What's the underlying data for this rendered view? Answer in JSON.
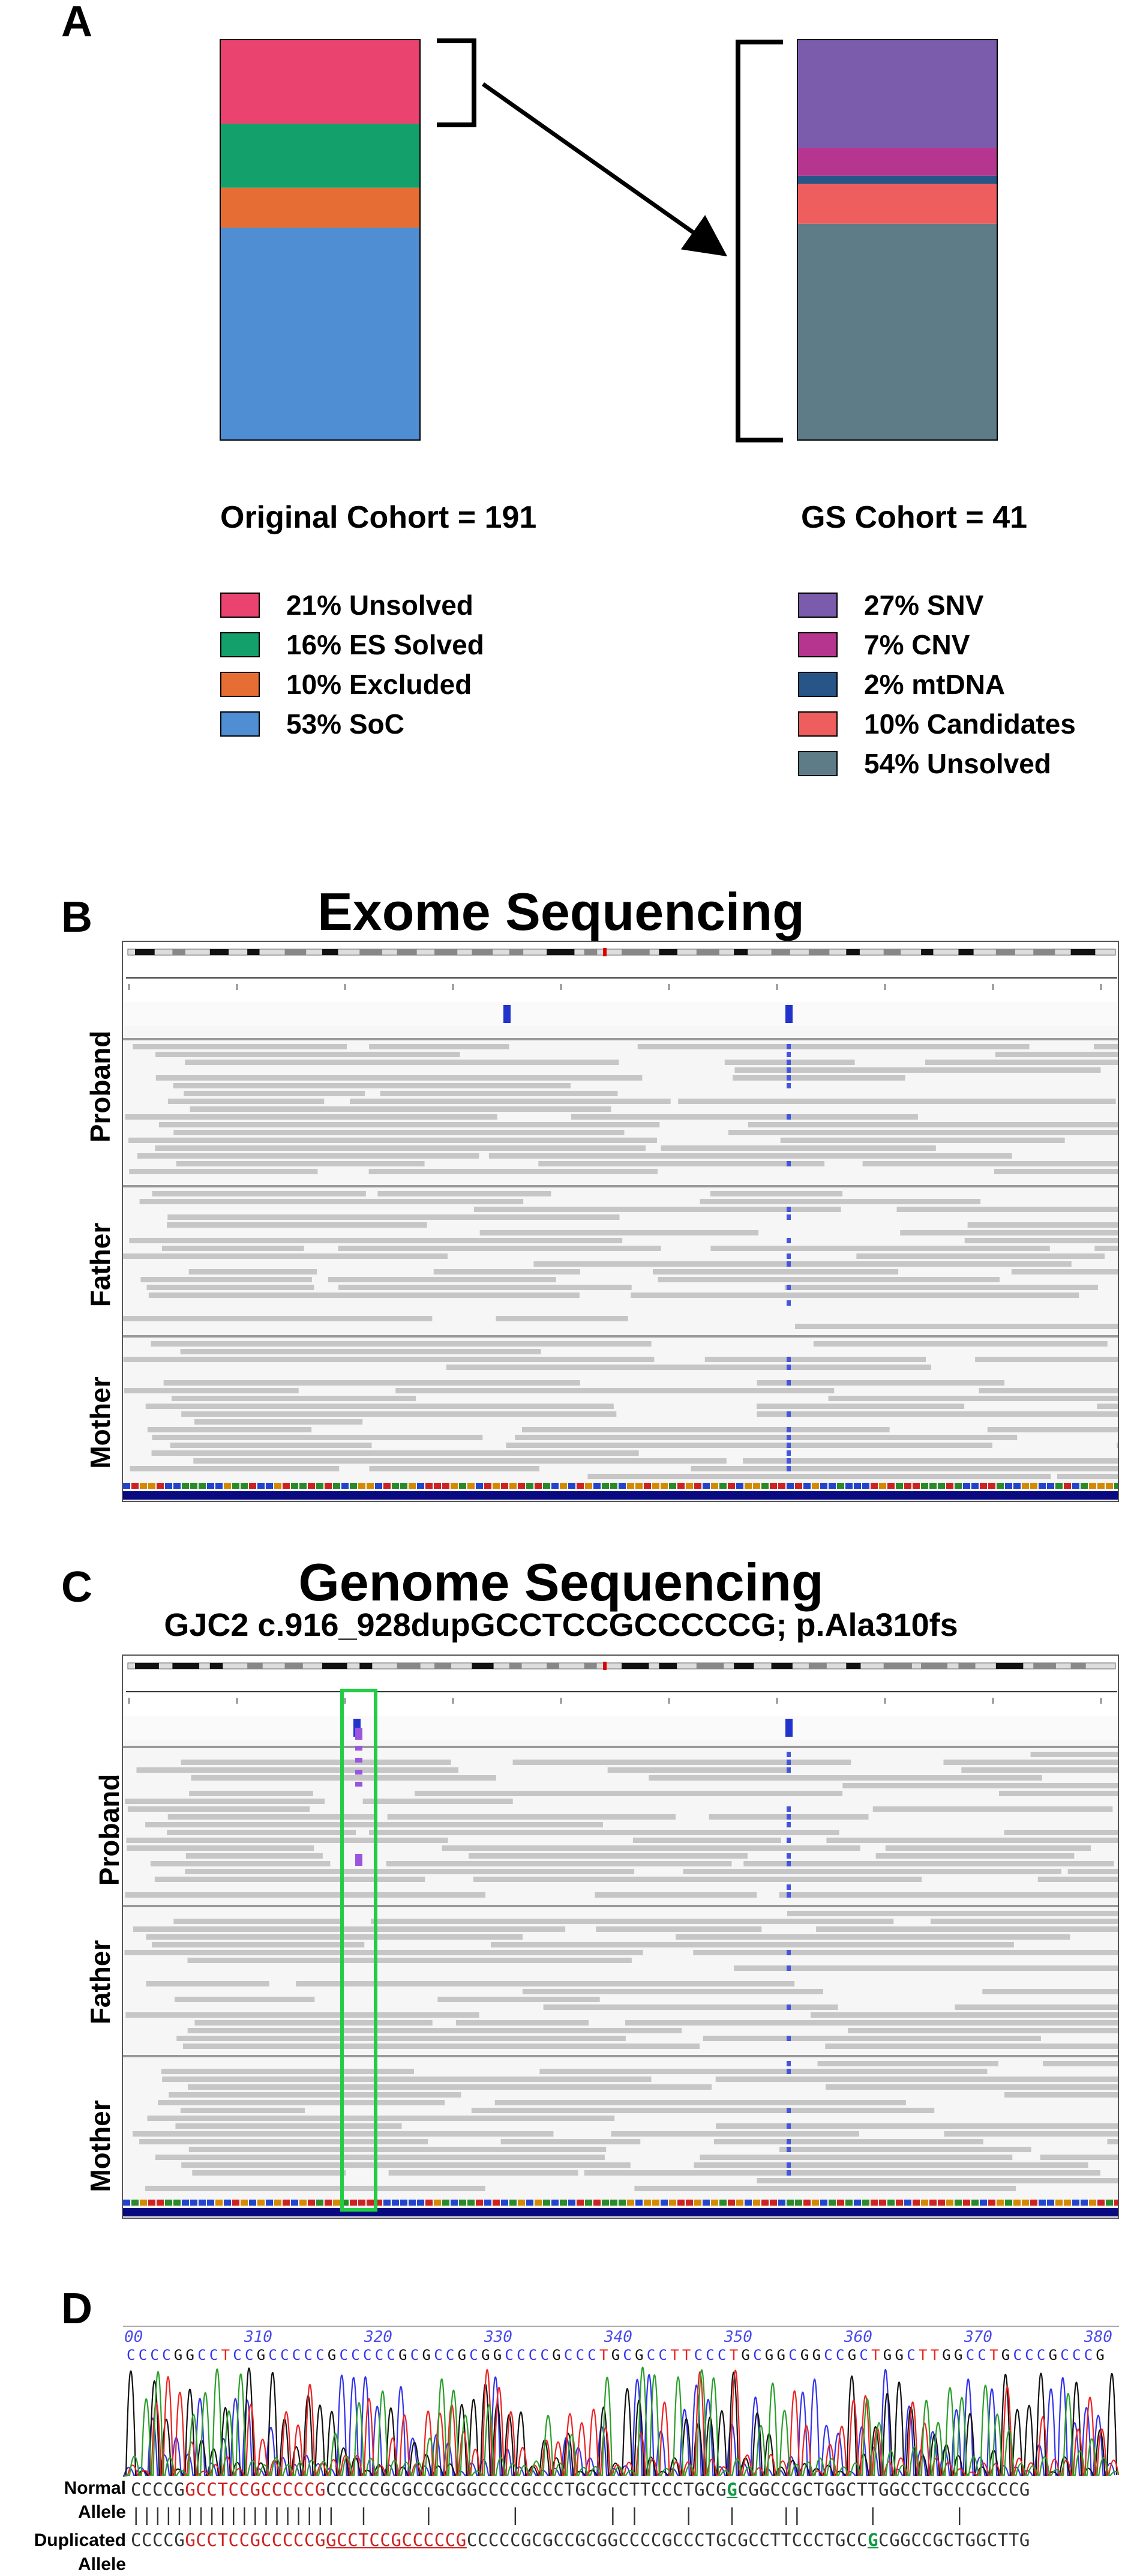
{
  "panels": {
    "a": "A",
    "b": "B",
    "c": "C",
    "d": "D"
  },
  "panel_a": {
    "original_label": "Original Cohort = 191",
    "gs_label": "GS Cohort = 41",
    "original_legend": [
      {
        "label": "21% Unsolved",
        "color": "#EA4370"
      },
      {
        "label": "16% ES Solved",
        "color": "#14A06A"
      },
      {
        "label": "10% Excluded",
        "color": "#E66E34"
      },
      {
        "label": "53% SoC",
        "color": "#4F8ED3"
      }
    ],
    "gs_legend": [
      {
        "label": "27% SNV",
        "color": "#7B5BAC"
      },
      {
        "label": "7% CNV",
        "color": "#B6358F"
      },
      {
        "label": "2% mtDNA",
        "color": "#275587"
      },
      {
        "label": "10% Candidates",
        "color": "#EF5E5F"
      },
      {
        "label": "54% Unsolved",
        "color": "#5E7C88"
      }
    ]
  },
  "chart_data": [
    {
      "type": "bar",
      "stacked": true,
      "categories": [
        "Original Cohort = 191"
      ],
      "series": [
        {
          "name": "21% Unsolved",
          "values": [
            21
          ]
        },
        {
          "name": "16% ES Solved",
          "values": [
            16
          ]
        },
        {
          "name": "10% Excluded",
          "values": [
            10
          ]
        },
        {
          "name": "53% SoC",
          "values": [
            53
          ]
        }
      ]
    },
    {
      "type": "bar",
      "stacked": true,
      "categories": [
        "GS Cohort = 41"
      ],
      "series": [
        {
          "name": "27% SNV",
          "values": [
            27
          ]
        },
        {
          "name": "7% CNV",
          "values": [
            7
          ]
        },
        {
          "name": "2% mtDNA",
          "values": [
            2
          ]
        },
        {
          "name": "10% Candidates",
          "values": [
            10
          ]
        },
        {
          "name": "54% Unsolved",
          "values": [
            54
          ]
        }
      ]
    }
  ],
  "panel_b": {
    "title": "Exome Sequencing",
    "tracks": [
      "Proband",
      "Father",
      "Mother"
    ]
  },
  "panel_c": {
    "title": "Genome Sequencing",
    "variant": "GJC2 c.916_928dupGCCTCCGCCCCCG; p.Ala310fs",
    "tracks": [
      "Proband",
      "Father",
      "Mother"
    ]
  },
  "panel_d": {
    "ruler": [
      "00",
      "310",
      "320",
      "330",
      "340",
      "350",
      "360",
      "370",
      "380"
    ],
    "normal_label_1": "Normal",
    "normal_label_2": "Allele",
    "dup_label_1": "Duplicated",
    "dup_label_2": "Allele",
    "normal_seq": "CCCCGGCCTCCGCCCCCGCCCCCGCGCCGCGGCCCCGCCCTGCGCCTTCCCTGCGGCGGCCGCTGGCTTGGCCTGCCCGCCCG",
    "match_line": "|||||||||||||||||||  |     |       |        | |    |   |    ||      |       |   ",
    "dup_seq": "CCCCGGCCTCCGCCCCCGGCCTCCGCCCCCGCCCCCGCGCCGCGGCCCCGCCCTGCGCCTTCCCTGCCGCGGCCGCTGGCTTG"
  }
}
